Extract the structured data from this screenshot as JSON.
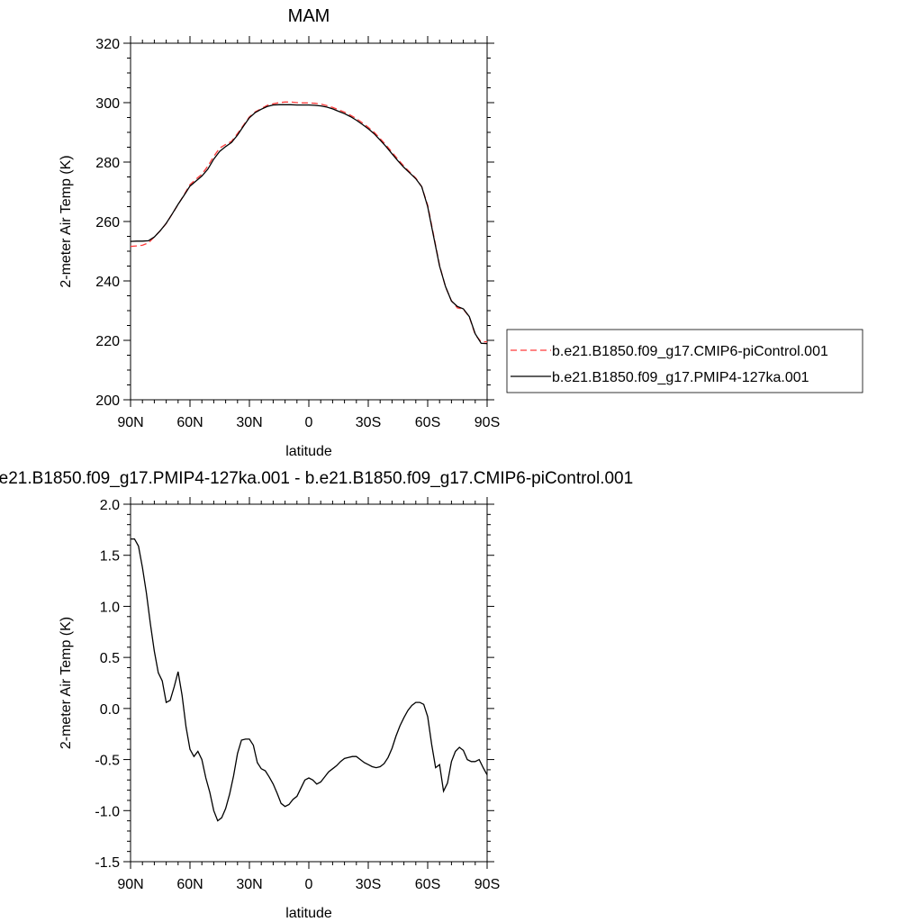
{
  "chart_data": [
    {
      "type": "line",
      "title": "MAM",
      "xlabel": "latitude",
      "ylabel": "2-meter Air Temp (K)",
      "xlim": [
        90,
        -90
      ],
      "ylim": [
        200,
        320
      ],
      "xticks": [
        90,
        60,
        30,
        0,
        -30,
        -60,
        -90
      ],
      "xtick_labels": [
        "90N",
        "60N",
        "30N",
        "0",
        "30S",
        "60S",
        "90S"
      ],
      "yticks": [
        200,
        220,
        240,
        260,
        280,
        300,
        320
      ],
      "ytick_labels": [
        "200",
        "220",
        "240",
        "260",
        "280",
        "300",
        "320"
      ],
      "grid": false,
      "legend": {
        "placement": "right",
        "entries": [
          "b.e21.B1850.f09_g17.CMIP6-piControl.001",
          "b.e21.B1850.f09_g17.PMIP4-127ka.001"
        ]
      },
      "series": [
        {
          "name": "b.e21.B1850.f09_g17.CMIP6-piControl.001",
          "color": "#ff3b3b",
          "dash": "dashed",
          "x": [
            90,
            87,
            84,
            81,
            78,
            75,
            72,
            69,
            66,
            63,
            60,
            57,
            54,
            51,
            48,
            45,
            42,
            39,
            36,
            33,
            30,
            27,
            24,
            21,
            18,
            15,
            12,
            9,
            6,
            3,
            0,
            -3,
            -6,
            -9,
            -12,
            -15,
            -18,
            -21,
            -24,
            -27,
            -30,
            -33,
            -36,
            -39,
            -42,
            -45,
            -48,
            -51,
            -54,
            -57,
            -60,
            -63,
            -66,
            -69,
            -72,
            -75,
            -78,
            -81,
            -84,
            -87,
            -90
          ],
          "y": [
            251.6,
            251.8,
            252.0,
            252.8,
            254.8,
            256.9,
            259.3,
            262.5,
            265.7,
            269.0,
            272.4,
            274.2,
            275.9,
            278.6,
            281.9,
            284.7,
            285.9,
            287.0,
            289.6,
            292.4,
            295.2,
            296.9,
            298.0,
            299.1,
            299.6,
            300.0,
            300.2,
            300.2,
            300.0,
            299.9,
            299.9,
            299.8,
            299.5,
            299.0,
            298.4,
            297.6,
            296.8,
            295.8,
            294.6,
            293.2,
            291.7,
            290.0,
            287.9,
            285.7,
            283.3,
            280.9,
            278.6,
            276.6,
            274.6,
            271.7,
            265.5,
            255.4,
            245.2,
            238.0,
            233.3,
            230.9,
            230.5,
            227.9,
            221.9,
            219.5,
            219.5
          ]
        },
        {
          "name": "b.e21.B1850.f09_g17.PMIP4-127ka.001",
          "color": "#000000",
          "dash": "solid",
          "x": [
            90,
            87,
            84,
            81,
            78,
            75,
            72,
            69,
            66,
            63,
            60,
            57,
            54,
            51,
            48,
            45,
            42,
            39,
            36,
            33,
            30,
            27,
            24,
            21,
            18,
            15,
            12,
            9,
            6,
            3,
            0,
            -3,
            -6,
            -9,
            -12,
            -15,
            -18,
            -21,
            -24,
            -27,
            -30,
            -33,
            -36,
            -39,
            -42,
            -45,
            -48,
            -51,
            -54,
            -57,
            -60,
            -63,
            -66,
            -69,
            -72,
            -75,
            -78,
            -81,
            -84,
            -87,
            -90
          ],
          "y": [
            253.3,
            253.4,
            253.4,
            253.5,
            254.8,
            256.9,
            259.4,
            262.5,
            265.8,
            268.8,
            271.9,
            273.6,
            275.3,
            277.6,
            281.0,
            283.6,
            285.2,
            286.6,
            289.1,
            292.1,
            294.9,
            296.7,
            297.8,
            298.7,
            299.2,
            299.3,
            299.3,
            299.3,
            299.2,
            299.2,
            299.2,
            299.1,
            298.9,
            298.5,
            297.9,
            297.1,
            296.3,
            295.3,
            294.1,
            292.7,
            291.2,
            289.5,
            287.4,
            285.2,
            282.8,
            280.4,
            278.2,
            276.3,
            274.4,
            271.7,
            265.0,
            254.9,
            245.0,
            238.1,
            233.2,
            231.4,
            230.6,
            228.0,
            222.2,
            219.0,
            218.9
          ]
        }
      ]
    },
    {
      "type": "line",
      "title": "b.e21.B1850.f09_g17.PMIP4-127ka.001 - b.e21.B1850.f09_g17.CMIP6-piControl.001",
      "xlabel": "latitude",
      "ylabel": "2-meter Air Temp (K)",
      "xlim": [
        90,
        -90
      ],
      "ylim": [
        -1.5,
        2.0
      ],
      "xticks": [
        90,
        60,
        30,
        0,
        -30,
        -60,
        -90
      ],
      "xtick_labels": [
        "90N",
        "60N",
        "30N",
        "0",
        "30S",
        "60S",
        "90S"
      ],
      "yticks": [
        -1.5,
        -1.0,
        -0.5,
        0.0,
        0.5,
        1.0,
        1.5,
        2.0
      ],
      "ytick_labels": [
        "-1.5",
        "-1.0",
        "-0.5",
        "0.0",
        "0.5",
        "1.0",
        "1.5",
        "2.0"
      ],
      "grid": false,
      "series": [
        {
          "color": "#000000",
          "dash": "solid",
          "x": [
            90,
            88,
            86,
            84,
            82,
            80,
            78,
            76,
            74,
            72,
            70,
            68,
            66,
            64,
            62,
            60,
            58,
            56,
            54,
            52,
            50,
            48,
            46,
            44,
            42,
            40,
            38,
            36,
            34,
            32,
            30,
            28,
            26,
            24,
            22,
            20,
            18,
            16,
            14,
            12,
            10,
            8,
            6,
            4,
            2,
            0,
            -2,
            -4,
            -6,
            -8,
            -10,
            -12,
            -14,
            -16,
            -18,
            -20,
            -22,
            -24,
            -26,
            -28,
            -30,
            -32,
            -34,
            -36,
            -38,
            -40,
            -42,
            -44,
            -46,
            -48,
            -50,
            -52,
            -54,
            -56,
            -58,
            -60,
            -62,
            -64,
            -66,
            -68,
            -70,
            -72,
            -74,
            -76,
            -78,
            -80,
            -82,
            -84,
            -86,
            -88,
            -90
          ],
          "y": [
            1.66,
            1.66,
            1.59,
            1.38,
            1.13,
            0.83,
            0.56,
            0.35,
            0.27,
            0.06,
            0.08,
            0.21,
            0.36,
            0.13,
            -0.18,
            -0.4,
            -0.47,
            -0.42,
            -0.5,
            -0.68,
            -0.82,
            -1.0,
            -1.1,
            -1.07,
            -0.98,
            -0.84,
            -0.66,
            -0.44,
            -0.31,
            -0.3,
            -0.3,
            -0.36,
            -0.53,
            -0.59,
            -0.61,
            -0.67,
            -0.74,
            -0.83,
            -0.93,
            -0.96,
            -0.94,
            -0.89,
            -0.86,
            -0.78,
            -0.7,
            -0.68,
            -0.7,
            -0.74,
            -0.72,
            -0.67,
            -0.62,
            -0.59,
            -0.56,
            -0.52,
            -0.49,
            -0.48,
            -0.47,
            -0.47,
            -0.5,
            -0.53,
            -0.55,
            -0.57,
            -0.58,
            -0.57,
            -0.54,
            -0.48,
            -0.39,
            -0.27,
            -0.17,
            -0.09,
            -0.02,
            0.03,
            0.06,
            0.06,
            0.04,
            -0.08,
            -0.35,
            -0.58,
            -0.55,
            -0.81,
            -0.73,
            -0.52,
            -0.42,
            -0.38,
            -0.41,
            -0.5,
            -0.52,
            -0.52,
            -0.5,
            -0.58,
            -0.65
          ]
        }
      ]
    }
  ]
}
